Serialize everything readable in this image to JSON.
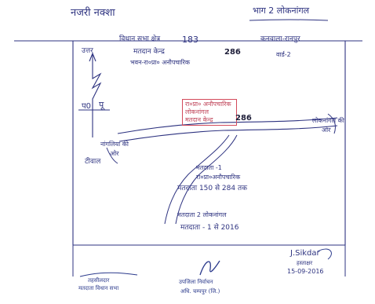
{
  "header": {
    "left_title": "नजरी नक्शा",
    "right_title": "भाग 2 लोकनांगल"
  },
  "info_block": {
    "line1_prefix": "विधान सभा क्षेत्र",
    "number_a": "183",
    "line1_suffix": "कनवाला-रानपुर",
    "line2_prefix": "मतदान केन्द्र",
    "line2_number": "286",
    "line2_suffix": "वार्ड-2",
    "line3": "भवन-रा०प्रा० अनौपचारिक"
  },
  "directions": {
    "north_label": "उत्तर",
    "east_label": "पू",
    "west_label": "प0"
  },
  "map_labels": {
    "booth_box_line1": "रा०प्रा० अनौपचारिक",
    "booth_box_line2": "लोकनांगल",
    "booth_box_line3": "मतदान केन्द्र",
    "booth_number": "286",
    "road_left_line1": "नांगलिया की",
    "road_left_line2": "ओर",
    "left_place": "टीवाल",
    "road_right_line1": "लोकनांगल की",
    "road_right_line2": "ओर",
    "middle_line1": "मतदाता -1",
    "middle_line2": "रा०प्रा०अनौपचारिक",
    "middle_line3": "मतदाता 150 से 284 तक",
    "lower_line1": "मतदाता 2 लोकनांगल",
    "lower_line2": "मतदाता - 1 से 2016"
  },
  "footer": {
    "signature_right": "J.Sikdar",
    "signature_right_sub": "हस्ताक्षर",
    "date": "15-09-2016",
    "left_stamp_line1": "तहसीलदार",
    "left_stamp_line2": "मतदाता विधान सभा",
    "center_stamp_line1": "उपजिला निर्वाचन",
    "center_stamp_line2": "अधि. चम्पपुर (जि.)"
  }
}
